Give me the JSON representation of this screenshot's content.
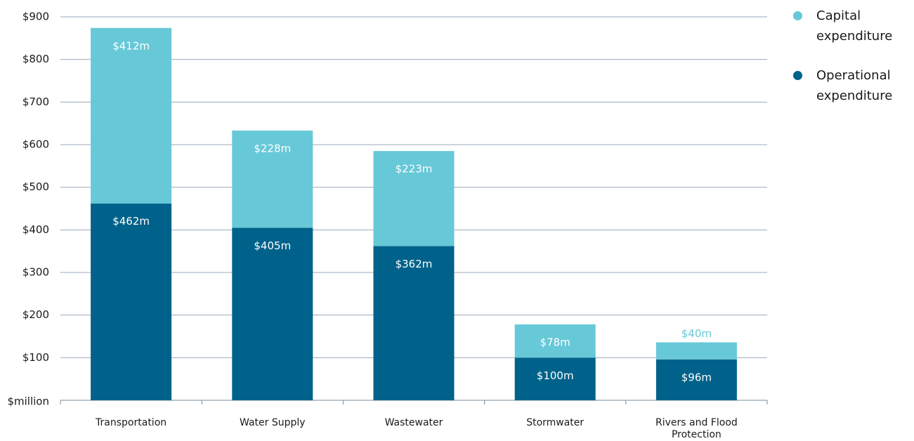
{
  "chart_data": {
    "type": "stacked_bar",
    "categories": [
      "Transportation",
      "Water Supply",
      "Wastewater",
      "Stormwater",
      "Rivers and Flood Protection"
    ],
    "series": [
      {
        "name": "Operational expenditure",
        "color": "#00628a",
        "values": [
          462,
          405,
          362,
          100,
          96
        ],
        "value_labels": [
          "$462m",
          "$405m",
          "$362m",
          "$100m",
          "$96m"
        ]
      },
      {
        "name": "Capital expenditure",
        "color": "#67c8d8",
        "values": [
          412,
          228,
          223,
          78,
          40
        ],
        "value_labels": [
          "$412m",
          "$228m",
          "$223m",
          "$78m",
          "$40m"
        ]
      }
    ],
    "ylim": [
      0,
      900
    ],
    "yticks": [
      {
        "value": 0,
        "label": "$million"
      },
      {
        "value": 100,
        "label": "$100"
      },
      {
        "value": 200,
        "label": "$200"
      },
      {
        "value": 300,
        "label": "$300"
      },
      {
        "value": 400,
        "label": "$400"
      },
      {
        "value": 500,
        "label": "$500"
      },
      {
        "value": 600,
        "label": "$600"
      },
      {
        "value": 700,
        "label": "$700"
      },
      {
        "value": 800,
        "label": "$800"
      },
      {
        "value": 900,
        "label": "$900"
      }
    ],
    "grid": true,
    "legend": "right"
  }
}
